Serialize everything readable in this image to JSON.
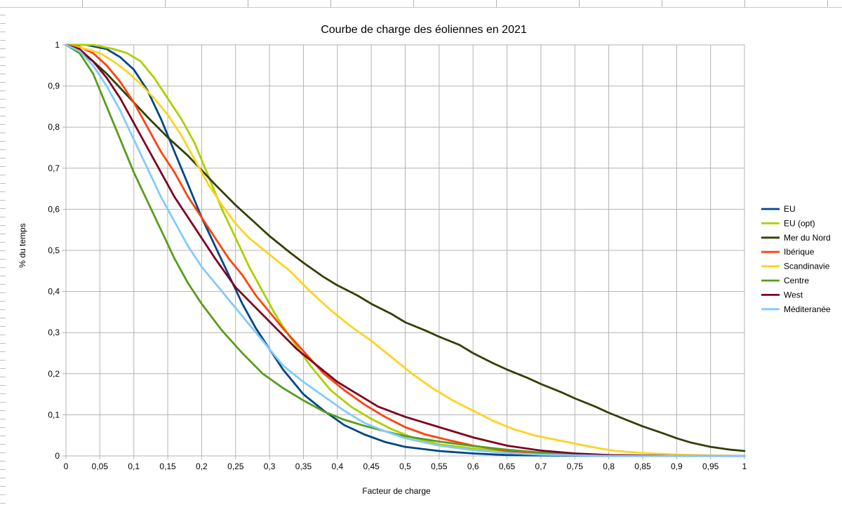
{
  "chart_data": {
    "type": "line",
    "title": "Courbe de charge des éoliennes en 2021",
    "xlabel": "Facteur de charge",
    "ylabel": "% du temps",
    "xlim": [
      0,
      1
    ],
    "ylim": [
      0,
      1
    ],
    "x_ticks": [
      "0",
      "0,05",
      "0,1",
      "0,15",
      "0,2",
      "0,25",
      "0,3",
      "0,35",
      "0,4",
      "0,45",
      "0,5",
      "0,55",
      "0,6",
      "0,65",
      "0,7",
      "0,75",
      "0,8",
      "0,85",
      "0,9",
      "0,95",
      "1"
    ],
    "y_ticks": [
      "0",
      "0,1",
      "0,2",
      "0,3",
      "0,4",
      "0,5",
      "0,6",
      "0,7",
      "0,8",
      "0,9",
      "1"
    ],
    "grid": true,
    "legend_position": "right",
    "series": [
      {
        "name": "EU",
        "color": "#004586",
        "x": [
          0,
          0.03,
          0.06,
          0.08,
          0.1,
          0.12,
          0.14,
          0.16,
          0.18,
          0.2,
          0.22,
          0.24,
          0.26,
          0.28,
          0.3,
          0.32,
          0.35,
          0.38,
          0.41,
          0.44,
          0.47,
          0.5,
          0.55,
          0.6,
          0.65,
          0.7,
          0.8,
          0.9,
          1
        ],
        "y": [
          1,
          1,
          0.99,
          0.97,
          0.94,
          0.89,
          0.82,
          0.74,
          0.66,
          0.58,
          0.51,
          0.44,
          0.37,
          0.31,
          0.26,
          0.21,
          0.15,
          0.11,
          0.075,
          0.052,
          0.034,
          0.022,
          0.012,
          0.006,
          0.002,
          0.001,
          0,
          0,
          0
        ]
      },
      {
        "name": "EU (opt)",
        "color": "#aecf00",
        "x": [
          0,
          0.04,
          0.07,
          0.09,
          0.11,
          0.13,
          0.15,
          0.17,
          0.19,
          0.21,
          0.23,
          0.25,
          0.27,
          0.29,
          0.31,
          0.33,
          0.36,
          0.39,
          0.42,
          0.45,
          0.48,
          0.51,
          0.55,
          0.6,
          0.65,
          0.7,
          0.8,
          0.9,
          1
        ],
        "y": [
          1,
          1,
          0.99,
          0.98,
          0.96,
          0.92,
          0.87,
          0.82,
          0.76,
          0.68,
          0.6,
          0.53,
          0.46,
          0.4,
          0.34,
          0.29,
          0.22,
          0.16,
          0.12,
          0.09,
          0.065,
          0.045,
          0.028,
          0.018,
          0.011,
          0.005,
          0.001,
          0,
          0
        ]
      },
      {
        "name": "Mer du Nord",
        "color": "#314004",
        "x": [
          0,
          0.02,
          0.04,
          0.06,
          0.08,
          0.1,
          0.12,
          0.15,
          0.18,
          0.2,
          0.22,
          0.25,
          0.28,
          0.3,
          0.33,
          0.35,
          0.38,
          0.4,
          0.43,
          0.45,
          0.48,
          0.5,
          0.53,
          0.55,
          0.58,
          0.6,
          0.63,
          0.65,
          0.68,
          0.7,
          0.73,
          0.75,
          0.78,
          0.8,
          0.83,
          0.85,
          0.88,
          0.9,
          0.92,
          0.95,
          0.98,
          1
        ],
        "y": [
          1,
          0.985,
          0.96,
          0.93,
          0.895,
          0.86,
          0.825,
          0.775,
          0.73,
          0.695,
          0.66,
          0.61,
          0.565,
          0.535,
          0.495,
          0.47,
          0.435,
          0.415,
          0.39,
          0.37,
          0.345,
          0.325,
          0.305,
          0.29,
          0.27,
          0.25,
          0.225,
          0.21,
          0.19,
          0.175,
          0.155,
          0.14,
          0.12,
          0.105,
          0.085,
          0.072,
          0.055,
          0.043,
          0.033,
          0.022,
          0.015,
          0.012
        ]
      },
      {
        "name": "Ibérique",
        "color": "#ff420e",
        "x": [
          0,
          0.02,
          0.04,
          0.06,
          0.08,
          0.1,
          0.12,
          0.14,
          0.16,
          0.18,
          0.2,
          0.22,
          0.24,
          0.26,
          0.28,
          0.3,
          0.32,
          0.35,
          0.38,
          0.41,
          0.44,
          0.47,
          0.5,
          0.53,
          0.56,
          0.6,
          0.65,
          0.7,
          0.8,
          0.9,
          1
        ],
        "y": [
          1,
          0.995,
          0.98,
          0.95,
          0.91,
          0.86,
          0.8,
          0.74,
          0.69,
          0.63,
          0.58,
          0.53,
          0.48,
          0.44,
          0.39,
          0.35,
          0.31,
          0.255,
          0.2,
          0.16,
          0.125,
          0.095,
          0.07,
          0.052,
          0.04,
          0.025,
          0.012,
          0.005,
          0.001,
          0,
          0
        ]
      },
      {
        "name": "Scandinavie",
        "color": "#ffd320",
        "x": [
          0,
          0.03,
          0.05,
          0.07,
          0.09,
          0.11,
          0.13,
          0.15,
          0.17,
          0.19,
          0.21,
          0.23,
          0.25,
          0.27,
          0.3,
          0.33,
          0.36,
          0.39,
          0.42,
          0.45,
          0.48,
          0.51,
          0.54,
          0.57,
          0.6,
          0.63,
          0.66,
          0.69,
          0.72,
          0.75,
          0.78,
          0.81,
          0.85,
          0.9,
          0.95,
          1
        ],
        "y": [
          1,
          0.99,
          0.98,
          0.96,
          0.935,
          0.905,
          0.87,
          0.83,
          0.78,
          0.72,
          0.66,
          0.61,
          0.565,
          0.53,
          0.49,
          0.45,
          0.4,
          0.355,
          0.315,
          0.28,
          0.24,
          0.2,
          0.165,
          0.135,
          0.11,
          0.085,
          0.065,
          0.05,
          0.04,
          0.03,
          0.02,
          0.012,
          0.007,
          0.003,
          0.001,
          0
        ]
      },
      {
        "name": "Centre",
        "color": "#579d1c",
        "x": [
          0,
          0.02,
          0.04,
          0.06,
          0.08,
          0.1,
          0.12,
          0.14,
          0.16,
          0.18,
          0.2,
          0.23,
          0.26,
          0.29,
          0.32,
          0.35,
          0.38,
          0.41,
          0.44,
          0.47,
          0.5,
          0.55,
          0.6,
          0.65,
          0.7,
          0.75,
          0.8,
          0.9,
          1
        ],
        "y": [
          1,
          0.98,
          0.93,
          0.85,
          0.77,
          0.69,
          0.62,
          0.55,
          0.48,
          0.42,
          0.37,
          0.305,
          0.25,
          0.2,
          0.165,
          0.135,
          0.108,
          0.088,
          0.073,
          0.06,
          0.048,
          0.035,
          0.024,
          0.015,
          0.008,
          0.004,
          0.002,
          0,
          0
        ]
      },
      {
        "name": "West",
        "color": "#7e0021",
        "x": [
          0,
          0.02,
          0.04,
          0.06,
          0.08,
          0.1,
          0.12,
          0.14,
          0.16,
          0.18,
          0.2,
          0.22,
          0.25,
          0.28,
          0.31,
          0.34,
          0.37,
          0.4,
          0.43,
          0.46,
          0.5,
          0.55,
          0.6,
          0.65,
          0.7,
          0.75,
          0.8,
          0.9,
          1
        ],
        "y": [
          1,
          0.99,
          0.96,
          0.92,
          0.87,
          0.81,
          0.75,
          0.69,
          0.63,
          0.58,
          0.53,
          0.48,
          0.41,
          0.36,
          0.31,
          0.26,
          0.22,
          0.18,
          0.15,
          0.12,
          0.095,
          0.07,
          0.045,
          0.025,
          0.013,
          0.006,
          0.002,
          0,
          0
        ]
      },
      {
        "name": "Méditeranée",
        "color": "#83caff",
        "x": [
          0,
          0.02,
          0.04,
          0.06,
          0.08,
          0.1,
          0.12,
          0.14,
          0.16,
          0.18,
          0.2,
          0.23,
          0.26,
          0.29,
          0.32,
          0.35,
          0.38,
          0.41,
          0.44,
          0.47,
          0.5,
          0.55,
          0.6,
          0.65,
          0.7,
          0.8,
          0.9,
          1
        ],
        "y": [
          1,
          0.985,
          0.95,
          0.9,
          0.84,
          0.77,
          0.7,
          0.63,
          0.57,
          0.51,
          0.46,
          0.4,
          0.34,
          0.28,
          0.22,
          0.18,
          0.145,
          0.11,
          0.08,
          0.06,
          0.043,
          0.025,
          0.014,
          0.007,
          0.003,
          0,
          0,
          0
        ]
      }
    ]
  }
}
